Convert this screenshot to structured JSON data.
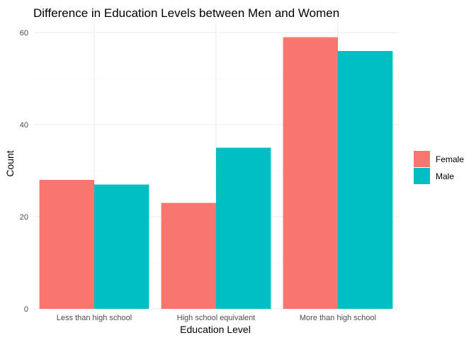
{
  "chart_data": {
    "type": "bar",
    "title": "Difference in Education Levels between Men and Women",
    "xlabel": "Education Level",
    "ylabel": "Count",
    "categories": [
      "Less than high school",
      "High school equivalent",
      "More than high school"
    ],
    "series": [
      {
        "name": "Female",
        "color": "#F8766D",
        "values": [
          28,
          23,
          59
        ]
      },
      {
        "name": "Male",
        "color": "#00BFC4",
        "values": [
          27,
          35,
          56
        ]
      }
    ],
    "ylim": [
      0,
      62
    ],
    "yticks": [
      0,
      20,
      40,
      60
    ],
    "grid": true,
    "legend_position": "right"
  }
}
